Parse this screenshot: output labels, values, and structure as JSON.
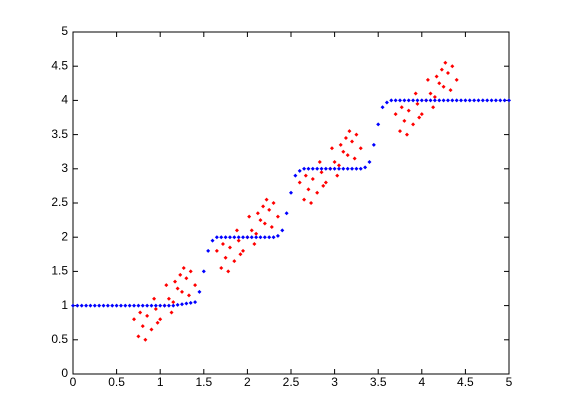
{
  "chart_data": {
    "type": "scatter",
    "xlim": [
      0,
      5
    ],
    "ylim": [
      0,
      5
    ],
    "xticks": [
      0,
      0.5,
      1,
      1.5,
      2,
      2.5,
      3,
      3.5,
      4,
      4.5,
      5
    ],
    "yticks": [
      0,
      0.5,
      1,
      1.5,
      2,
      2.5,
      3,
      3.5,
      4,
      4.5,
      5
    ],
    "series": [
      {
        "color": "#ff0000",
        "x": [
          0.75,
          0.8,
          0.85,
          0.9,
          0.95,
          1.0,
          1.05,
          1.1,
          1.15,
          1.2,
          1.25,
          1.3,
          1.35,
          1.4,
          0.7,
          0.93,
          1.13,
          1.23,
          0.83,
          1.07,
          1.33,
          0.97,
          1.17,
          0.77,
          1.27,
          1.7,
          1.75,
          1.8,
          1.85,
          1.9,
          1.95,
          2.0,
          2.05,
          2.1,
          2.15,
          2.2,
          2.25,
          2.3,
          2.35,
          1.65,
          1.88,
          2.08,
          2.18,
          1.78,
          2.02,
          2.28,
          1.92,
          2.12,
          1.72,
          2.22,
          2.65,
          2.7,
          2.75,
          2.8,
          2.85,
          2.9,
          2.95,
          3.0,
          3.05,
          3.1,
          3.15,
          3.2,
          3.25,
          3.3,
          2.6,
          2.83,
          3.03,
          3.13,
          2.73,
          2.97,
          3.23,
          2.87,
          3.07,
          2.67,
          3.17,
          3.75,
          3.8,
          3.85,
          3.9,
          3.95,
          4.0,
          4.05,
          4.1,
          4.15,
          4.2,
          4.25,
          4.3,
          4.35,
          4.4,
          3.7,
          3.93,
          4.13,
          4.23,
          3.83,
          4.07,
          4.33,
          3.97,
          4.17,
          3.77,
          4.27
        ],
        "values": [
          0.55,
          0.7,
          0.85,
          0.65,
          0.95,
          0.8,
          1.0,
          1.1,
          1.05,
          1.25,
          1.2,
          1.4,
          1.5,
          1.3,
          0.8,
          1.1,
          0.9,
          1.45,
          0.5,
          1.3,
          1.15,
          0.75,
          1.35,
          0.9,
          1.55,
          1.55,
          1.7,
          1.85,
          1.65,
          1.95,
          1.8,
          2.0,
          2.1,
          2.05,
          2.25,
          2.2,
          2.4,
          2.5,
          2.3,
          1.8,
          2.1,
          1.9,
          2.45,
          1.5,
          2.3,
          2.15,
          1.75,
          2.35,
          1.9,
          2.55,
          2.55,
          2.7,
          2.85,
          2.65,
          2.95,
          2.8,
          3.0,
          3.1,
          3.05,
          3.25,
          3.2,
          3.4,
          3.5,
          3.3,
          2.8,
          3.1,
          2.9,
          3.45,
          2.5,
          3.3,
          3.15,
          2.75,
          3.35,
          2.9,
          3.55,
          3.55,
          3.7,
          3.85,
          3.65,
          3.95,
          3.8,
          4.0,
          4.1,
          4.05,
          4.25,
          4.2,
          4.4,
          4.5,
          4.3,
          3.8,
          4.1,
          3.9,
          4.45,
          3.5,
          4.3,
          4.15,
          3.75,
          4.35,
          3.9,
          4.55
        ]
      },
      {
        "color": "#0000ff",
        "x": [
          0,
          0.05,
          0.1,
          0.15,
          0.2,
          0.25,
          0.3,
          0.35,
          0.4,
          0.45,
          0.5,
          0.55,
          0.6,
          0.65,
          0.7,
          0.75,
          0.8,
          0.85,
          0.9,
          0.95,
          1.0,
          1.05,
          1.1,
          1.15,
          1.2,
          1.25,
          1.3,
          1.35,
          1.4,
          1.45,
          1.5,
          1.55,
          1.6,
          1.65,
          1.7,
          1.75,
          1.8,
          1.85,
          1.9,
          1.95,
          2.0,
          2.05,
          2.1,
          2.15,
          2.2,
          2.25,
          2.3,
          2.35,
          2.4,
          2.45,
          2.5,
          2.55,
          2.6,
          2.65,
          2.7,
          2.75,
          2.8,
          2.85,
          2.9,
          2.95,
          3.0,
          3.05,
          3.1,
          3.15,
          3.2,
          3.25,
          3.3,
          3.35,
          3.4,
          3.45,
          3.5,
          3.55,
          3.6,
          3.65,
          3.7,
          3.75,
          3.8,
          3.85,
          3.9,
          3.95,
          4.0,
          4.05,
          4.1,
          4.15,
          4.2,
          4.25,
          4.3,
          4.35,
          4.4,
          4.45,
          4.5,
          4.55,
          4.6,
          4.65,
          4.7,
          4.75,
          4.8,
          4.85,
          4.9,
          4.95,
          5.0
        ],
        "values": [
          1,
          1,
          1,
          1,
          1,
          1,
          1,
          1,
          1,
          1,
          1,
          1,
          1,
          1,
          1,
          1,
          1,
          1,
          1,
          1,
          1,
          1,
          1,
          1,
          1.01,
          1.02,
          1.03,
          1.04,
          1.05,
          1.2,
          1.5,
          1.8,
          1.95,
          2,
          2,
          2,
          2,
          2,
          2,
          2,
          2,
          2,
          2,
          2,
          2,
          2,
          2,
          2.02,
          2.1,
          2.35,
          2.65,
          2.9,
          2.97,
          3,
          3,
          3,
          3,
          3,
          3,
          3,
          3,
          3,
          3,
          3,
          3,
          3,
          3,
          3.02,
          3.1,
          3.35,
          3.65,
          3.9,
          3.97,
          4,
          4,
          4,
          4,
          4,
          4,
          4,
          4,
          4,
          4,
          4,
          4,
          4,
          4,
          4,
          4,
          4,
          4,
          4,
          4,
          4,
          4,
          4,
          4,
          4,
          4,
          4,
          4
        ]
      }
    ]
  }
}
